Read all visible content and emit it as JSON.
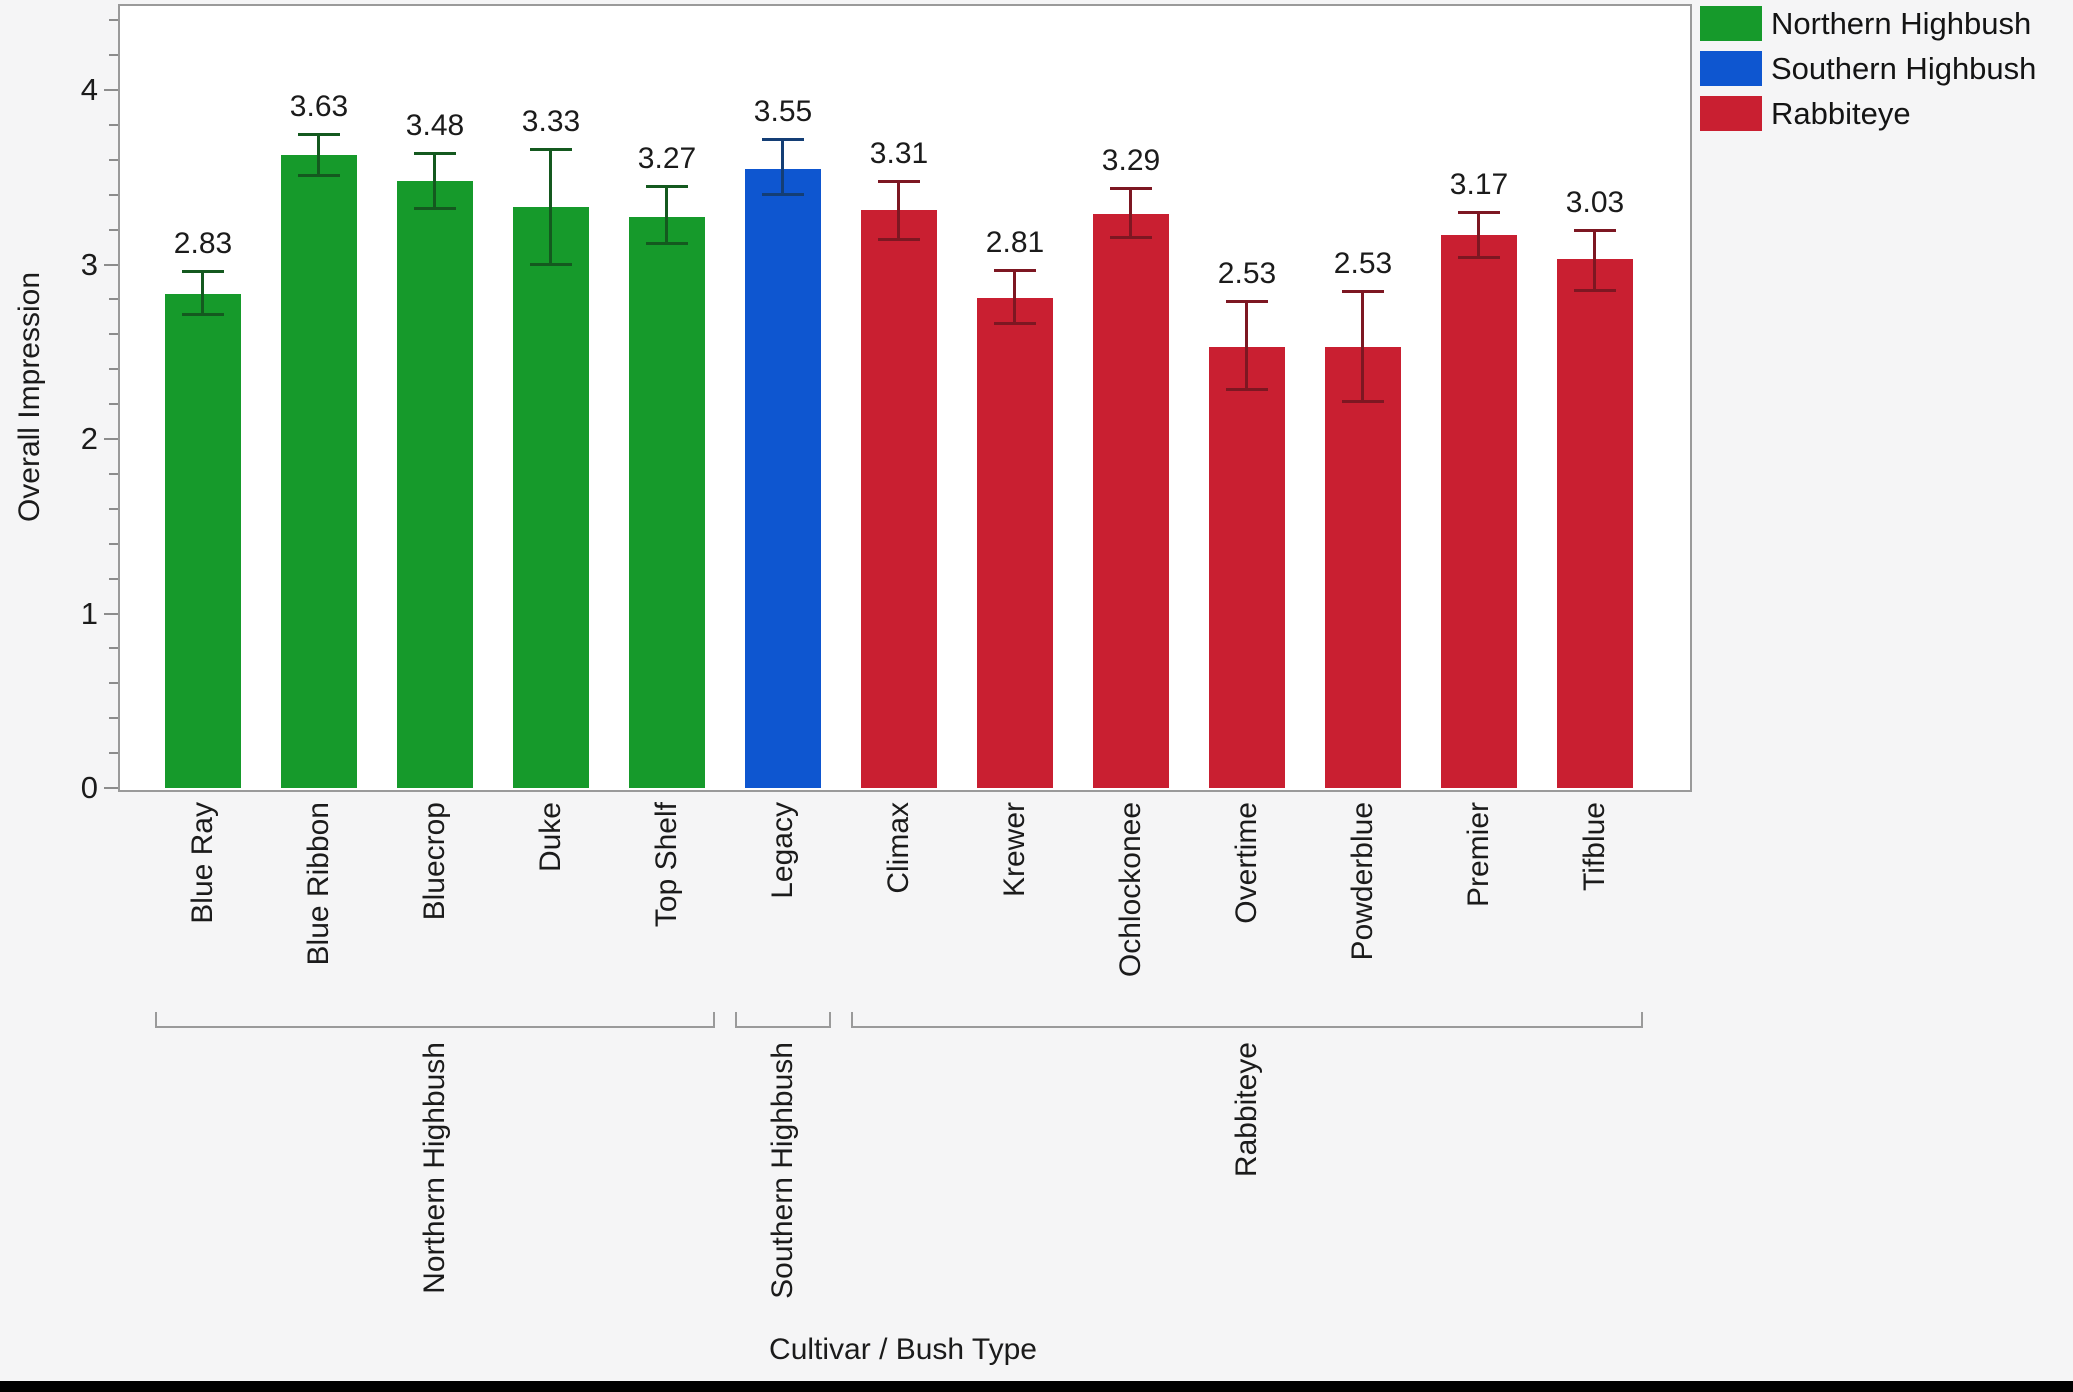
{
  "chart_data": {
    "type": "bar",
    "title": "",
    "xlabel": "Cultivar / Bush Type",
    "ylabel": "Overall Impression",
    "ylim": [
      0,
      4.5
    ],
    "y_major_ticks": [
      0,
      1,
      2,
      3,
      4
    ],
    "y_minor_tick_step": 0.2,
    "grid": false,
    "legend_position": "top-right",
    "error_bars": "yes",
    "groups": [
      {
        "name": "Northern Highbush",
        "color": "#169a2b",
        "error_color": "#14591f"
      },
      {
        "name": "Southern Highbush",
        "color": "#0e56d0",
        "error_color": "#143e75"
      },
      {
        "name": "Rabbiteye",
        "color": "#c91f31",
        "error_color": "#7d1722"
      }
    ],
    "bars": [
      {
        "label": "Blue Ray",
        "value": 2.83,
        "value_label": "2.83",
        "err_lo": 2.71,
        "err_hi": 2.96,
        "group": 0
      },
      {
        "label": "Blue Ribbon",
        "value": 3.63,
        "value_label": "3.63",
        "err_lo": 3.51,
        "err_hi": 3.75,
        "group": 0
      },
      {
        "label": "Bluecrop",
        "value": 3.48,
        "value_label": "3.48",
        "err_lo": 3.32,
        "err_hi": 3.64,
        "group": 0
      },
      {
        "label": "Duke",
        "value": 3.33,
        "value_label": "3.33",
        "err_lo": 3.0,
        "err_hi": 3.66,
        "group": 0
      },
      {
        "label": "Top Shelf",
        "value": 3.27,
        "value_label": "3.27",
        "err_lo": 3.12,
        "err_hi": 3.45,
        "group": 0
      },
      {
        "label": "Legacy",
        "value": 3.55,
        "value_label": "3.55",
        "err_lo": 3.4,
        "err_hi": 3.72,
        "group": 1
      },
      {
        "label": "Climax",
        "value": 3.31,
        "value_label": "3.31",
        "err_lo": 3.14,
        "err_hi": 3.48,
        "group": 2
      },
      {
        "label": "Krewer",
        "value": 2.81,
        "value_label": "2.81",
        "err_lo": 2.66,
        "err_hi": 2.97,
        "group": 2
      },
      {
        "label": "Ochlockonee",
        "value": 3.29,
        "value_label": "3.29",
        "err_lo": 3.15,
        "err_hi": 3.44,
        "group": 2
      },
      {
        "label": "Overtime",
        "value": 2.53,
        "value_label": "2.53",
        "err_lo": 2.28,
        "err_hi": 2.79,
        "group": 2
      },
      {
        "label": "Powderblue",
        "value": 2.53,
        "value_label": "2.53",
        "err_lo": 2.21,
        "err_hi": 2.85,
        "group": 2
      },
      {
        "label": "Premier",
        "value": 3.17,
        "value_label": "3.17",
        "err_lo": 3.04,
        "err_hi": 3.3,
        "group": 2
      },
      {
        "label": "Tifblue",
        "value": 3.03,
        "value_label": "3.03",
        "err_lo": 2.85,
        "err_hi": 3.2,
        "group": 2
      }
    ]
  }
}
